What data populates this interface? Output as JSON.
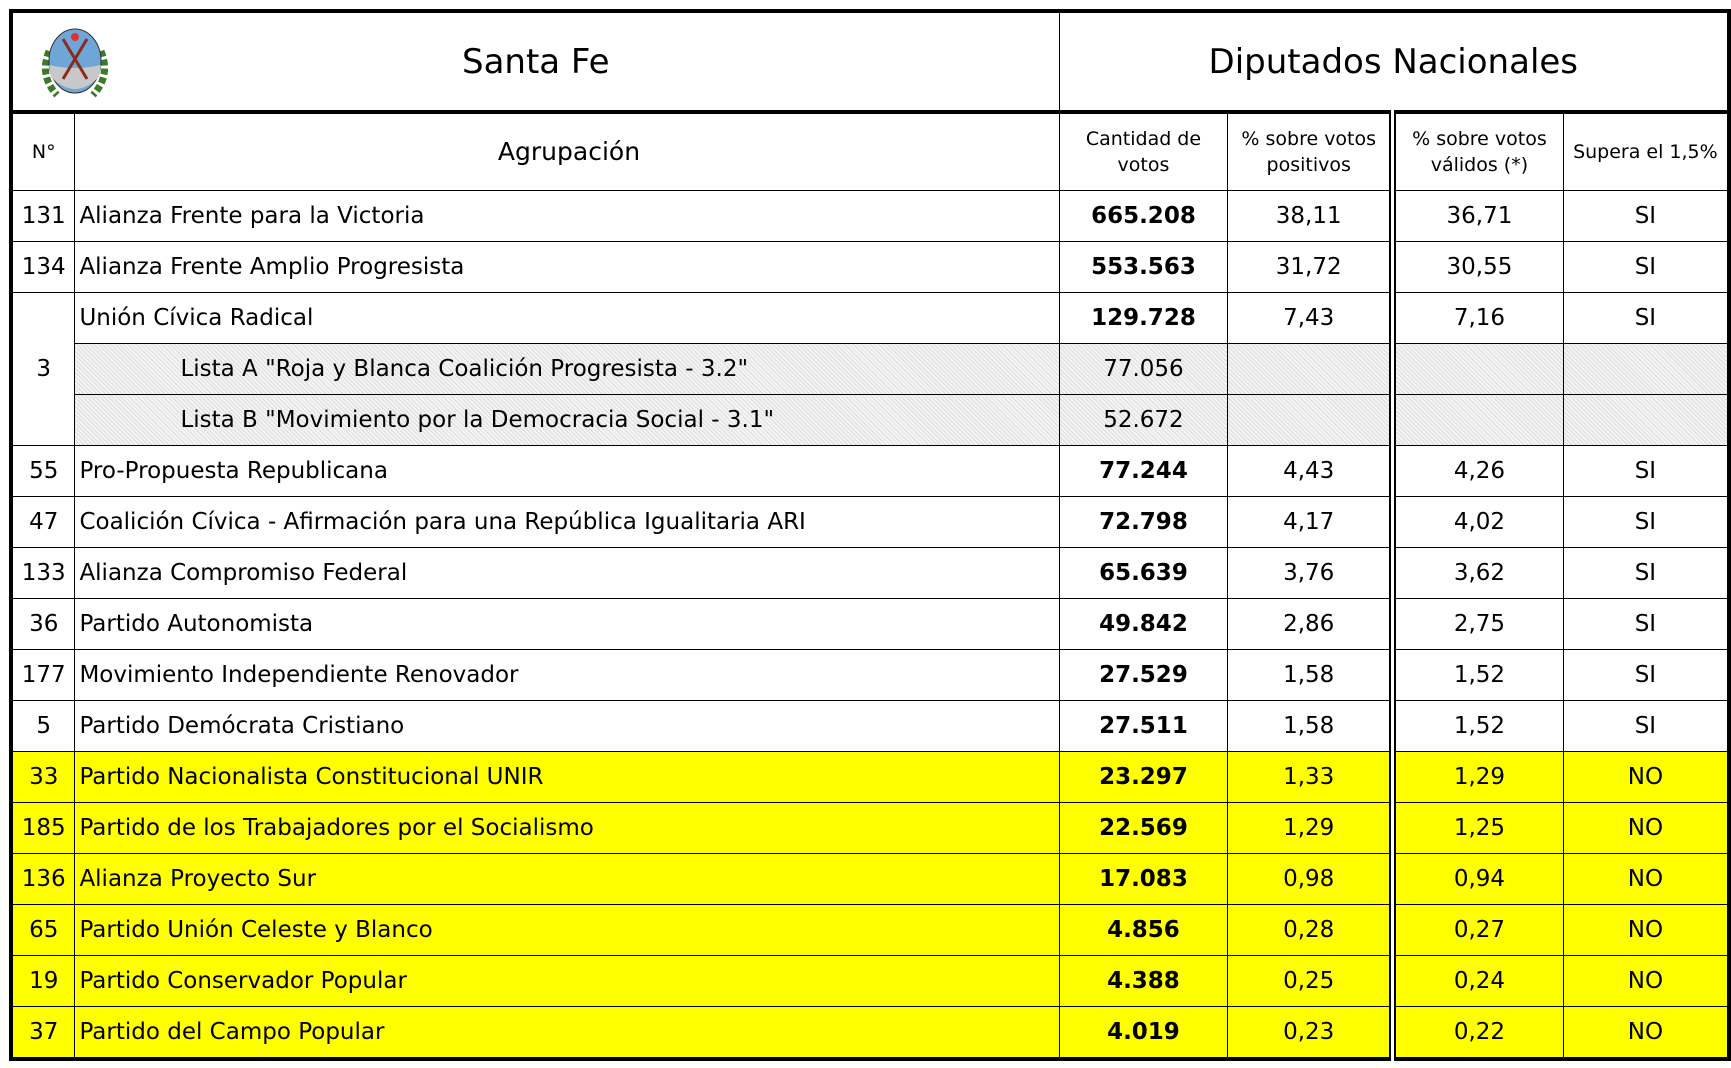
{
  "header": {
    "province": "Santa Fe",
    "office": "Diputados Nacionales"
  },
  "columns": {
    "number": "N°",
    "party": "Agrupación",
    "votes": "Cantidad de votos",
    "pct_positive": "% sobre votos positivos",
    "pct_valid": "% sobre votos válidos (*)",
    "exceeds": "Supera el 1,5%"
  },
  "table": {
    "rows": [
      {
        "number": "131",
        "party": "Alianza Frente para la Victoria",
        "votes": "665.208",
        "pct_positive": "38,11",
        "pct_valid": "36,71",
        "exceeds": "SI"
      },
      {
        "number": "134",
        "party": "Alianza Frente Amplio Progresista",
        "votes": "553.563",
        "pct_positive": "31,72",
        "pct_valid": "30,55",
        "exceeds": "SI"
      },
      {
        "number": "3",
        "party": "Unión Cívica Radical",
        "votes": "129.728",
        "pct_positive": "7,43",
        "pct_valid": "7,16",
        "exceeds": "SI",
        "lists": [
          {
            "name": "Lista A \"Roja y Blanca Coalición Progresista - 3.2\"",
            "votes": "77.056"
          },
          {
            "name": "Lista B \"Movimiento por la Democracia Social - 3.1\"",
            "votes": "52.672"
          }
        ]
      },
      {
        "number": "55",
        "party": "Pro-Propuesta Republicana",
        "votes": "77.244",
        "pct_positive": "4,43",
        "pct_valid": "4,26",
        "exceeds": "SI"
      },
      {
        "number": "47",
        "party": "Coalición Cívica - Afirmación para una República Igualitaria ARI",
        "votes": "72.798",
        "pct_positive": "4,17",
        "pct_valid": "4,02",
        "exceeds": "SI"
      },
      {
        "number": "133",
        "party": "Alianza Compromiso Federal",
        "votes": "65.639",
        "pct_positive": "3,76",
        "pct_valid": "3,62",
        "exceeds": "SI"
      },
      {
        "number": "36",
        "party": "Partido Autonomista",
        "votes": "49.842",
        "pct_positive": "2,86",
        "pct_valid": "2,75",
        "exceeds": "SI"
      },
      {
        "number": "177",
        "party": "Movimiento Independiente Renovador",
        "votes": "27.529",
        "pct_positive": "1,58",
        "pct_valid": "1,52",
        "exceeds": "SI"
      },
      {
        "number": "5",
        "party": "Partido Demócrata Cristiano",
        "votes": "27.511",
        "pct_positive": "1,58",
        "pct_valid": "1,52",
        "exceeds": "SI"
      },
      {
        "number": "33",
        "party": "Partido Nacionalista Constitucional UNIR",
        "votes": "23.297",
        "pct_positive": "1,33",
        "pct_valid": "1,29",
        "exceeds": "NO"
      },
      {
        "number": "185",
        "party": "Partido de los Trabajadores por el Socialismo",
        "votes": "22.569",
        "pct_positive": "1,29",
        "pct_valid": "1,25",
        "exceeds": "NO"
      },
      {
        "number": "136",
        "party": "Alianza Proyecto Sur",
        "votes": "17.083",
        "pct_positive": "0,98",
        "pct_valid": "0,94",
        "exceeds": "NO"
      },
      {
        "number": "65",
        "party": "Partido Unión Celeste y Blanco",
        "votes": "4.856",
        "pct_positive": "0,28",
        "pct_valid": "0,27",
        "exceeds": "NO"
      },
      {
        "number": "19",
        "party": "Partido Conservador Popular",
        "votes": "4.388",
        "pct_positive": "0,25",
        "pct_valid": "0,24",
        "exceeds": "NO"
      },
      {
        "number": "37",
        "party": "Partido del Campo Popular",
        "votes": "4.019",
        "pct_positive": "0,23",
        "pct_valid": "0,22",
        "exceeds": "NO"
      }
    ]
  }
}
